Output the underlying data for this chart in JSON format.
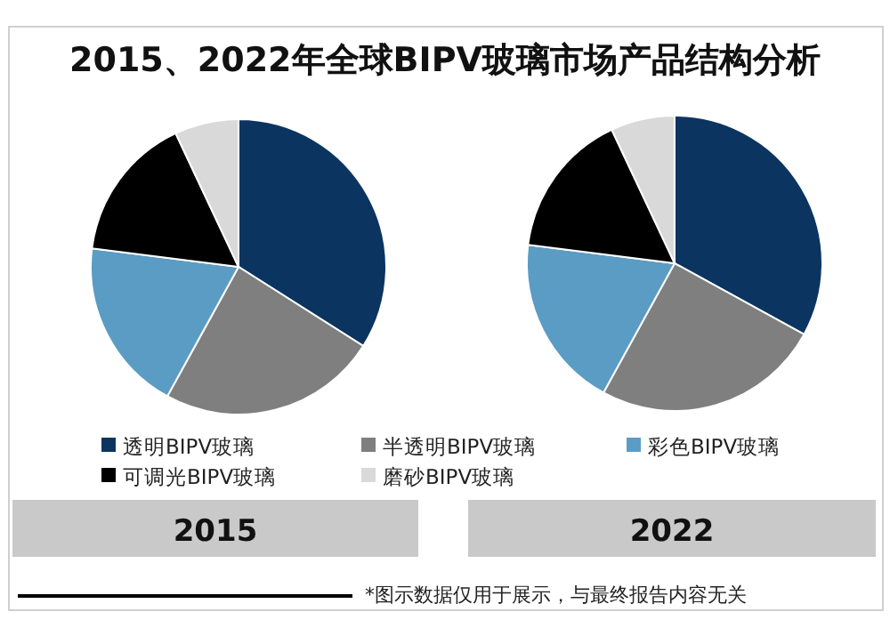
{
  "chart_data": {
    "type": "pie",
    "title": "2015、2022年全球BIPV玻璃市场产品结构分析",
    "categories": [
      "透明BIPV玻璃",
      "半透明BIPV玻璃",
      "彩色BIPV玻璃",
      "可调光BIPV玻璃",
      "磨砂BIPV玻璃"
    ],
    "colors": [
      "#0b3560",
      "#7f7f7f",
      "#5b9cc4",
      "#000000",
      "#d9d9d9"
    ],
    "series": [
      {
        "name": "2015",
        "values": [
          34,
          24,
          19,
          16,
          7
        ]
      },
      {
        "name": "2022",
        "values": [
          33,
          25,
          19,
          16,
          7
        ]
      }
    ],
    "legend": "bottom",
    "annotations": [
      "*图示数据仅用于展示，与最终报告内容无关"
    ]
  }
}
